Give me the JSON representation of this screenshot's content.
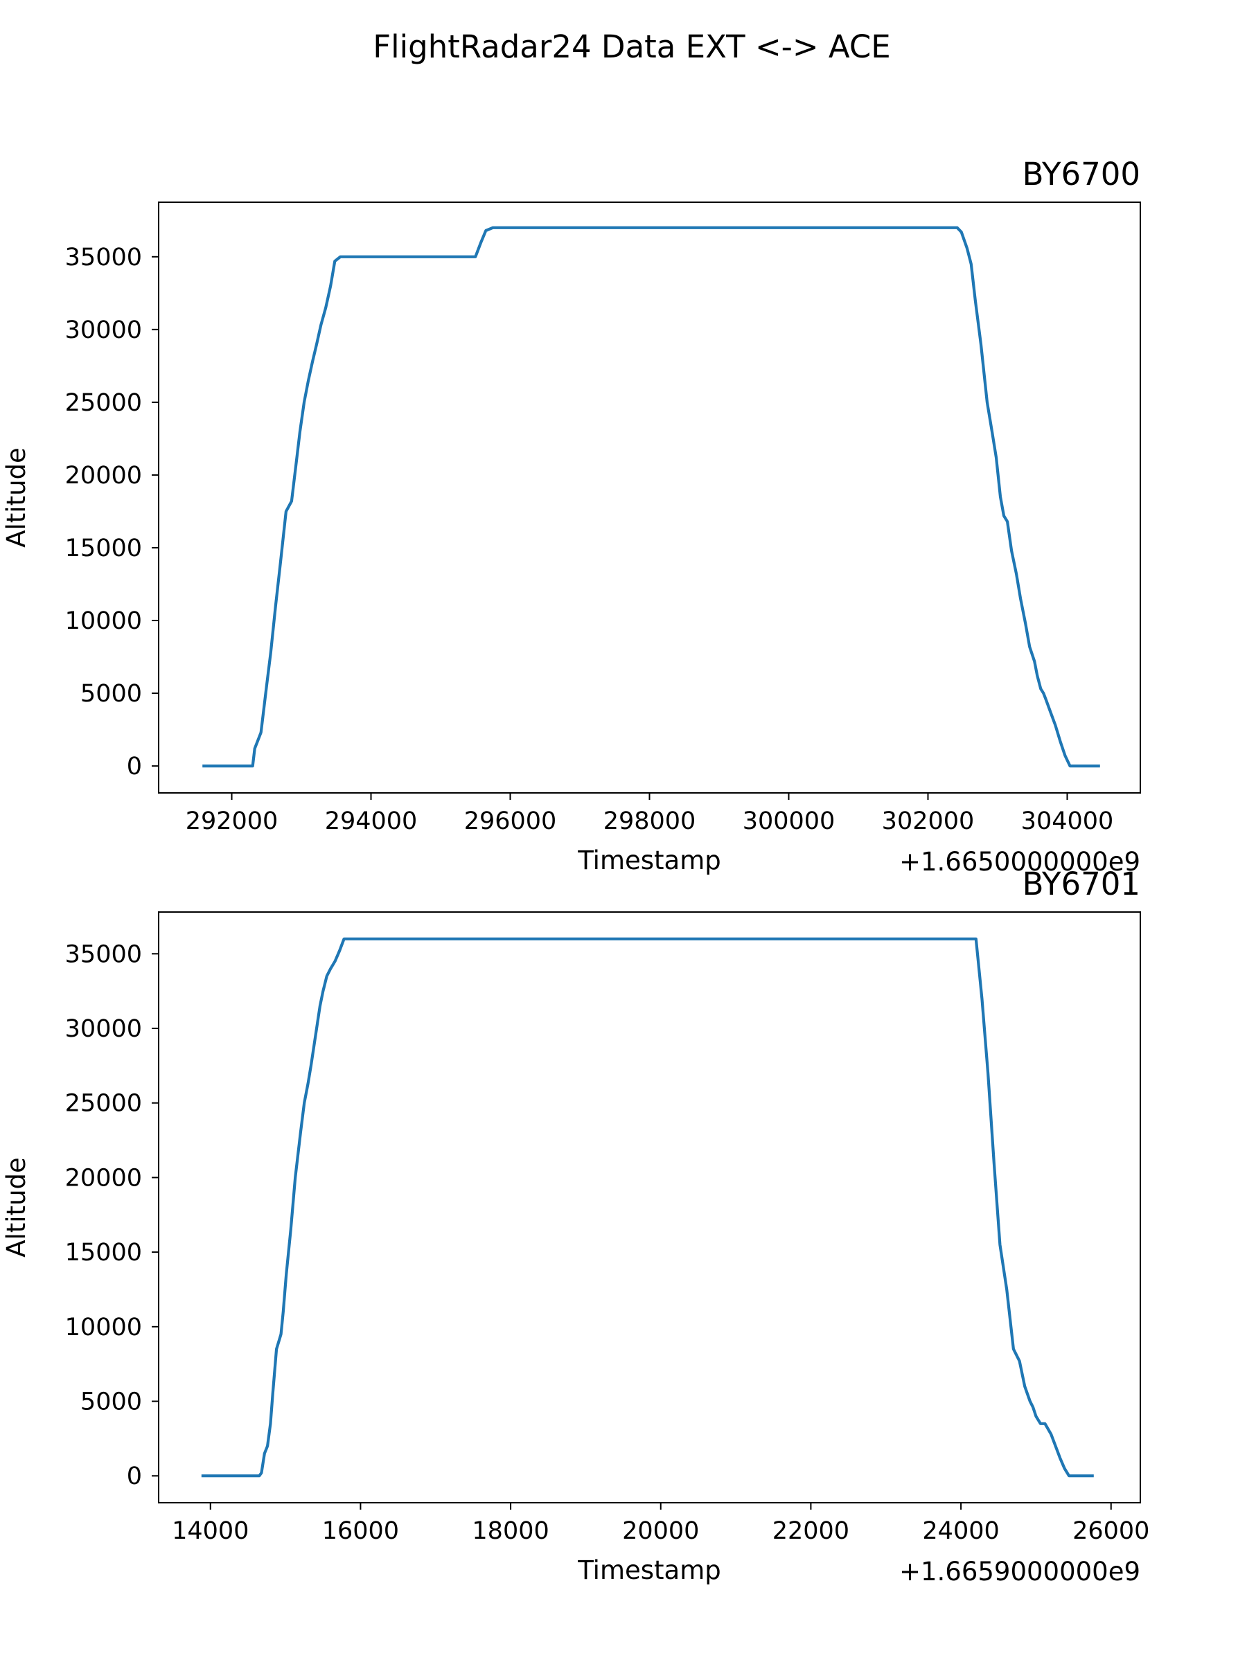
{
  "figure": {
    "suptitle": "FlightRadar24 Data EXT <-> ACE"
  },
  "style": {
    "line_color": "#1f77b4",
    "axis_color": "#000000",
    "background": "#ffffff"
  },
  "chart_data": [
    {
      "type": "line",
      "title": "BY6700",
      "title_placement": "right",
      "xlabel": "Timestamp",
      "ylabel": "Altitude",
      "x_offset_label": "+1.6650000000e9",
      "xlim": [
        290950,
        305050
      ],
      "ylim": [
        -1850,
        38750
      ],
      "xticks": [
        292000,
        294000,
        296000,
        298000,
        300000,
        302000,
        304000
      ],
      "xtick_labels": [
        "292000",
        "294000",
        "296000",
        "298000",
        "300000",
        "302000",
        "304000"
      ],
      "yticks": [
        0,
        5000,
        10000,
        15000,
        20000,
        25000,
        30000,
        35000
      ],
      "ytick_labels": [
        "0",
        "5000",
        "10000",
        "15000",
        "20000",
        "25000",
        "30000",
        "35000"
      ],
      "grid": false,
      "legend": false,
      "series": [
        {
          "x": [
            291600,
            292300,
            292330,
            292420,
            292500,
            292560,
            292630,
            292700,
            292780,
            292860,
            292930,
            292980,
            293040,
            293100,
            293160,
            293220,
            293280,
            293350,
            293420,
            293480,
            293560,
            293900,
            295000,
            295500,
            295580,
            295650,
            295750,
            296500,
            298000,
            300000,
            302000,
            302420,
            302480,
            302560,
            302620,
            302680,
            302760,
            302850,
            302920,
            302980,
            303040,
            303090,
            303140,
            303200,
            303270,
            303330,
            303400,
            303460,
            303530,
            303570,
            303620,
            303660,
            303700,
            303760,
            303830,
            303900,
            303970,
            304040,
            304110,
            304200,
            304450
          ],
          "y": [
            0,
            0,
            1200,
            2300,
            5500,
            7800,
            11000,
            14000,
            17500,
            18200,
            21000,
            23000,
            25000,
            26500,
            27800,
            29000,
            30300,
            31500,
            33000,
            34700,
            35000,
            35000,
            35000,
            35000,
            36000,
            36800,
            37000,
            37000,
            37000,
            37000,
            37000,
            37000,
            36700,
            35600,
            34500,
            32000,
            29000,
            25000,
            23000,
            21200,
            18500,
            17200,
            16800,
            14800,
            13200,
            11500,
            9800,
            8200,
            7200,
            6200,
            5300,
            5000,
            4500,
            3700,
            2800,
            1700,
            700,
            0,
            0,
            0,
            0
          ],
          "color": "#1f77b4"
        }
      ]
    },
    {
      "type": "line",
      "title": "BY6701",
      "title_placement": "right",
      "xlabel": "Timestamp",
      "ylabel": "Altitude",
      "x_offset_label": "+1.6659000000e9",
      "xlim": [
        13310,
        26390
      ],
      "ylim": [
        -1800,
        37800
      ],
      "xticks": [
        14000,
        16000,
        18000,
        20000,
        22000,
        24000,
        26000
      ],
      "xtick_labels": [
        "14000",
        "16000",
        "18000",
        "20000",
        "22000",
        "24000",
        "26000"
      ],
      "yticks": [
        0,
        5000,
        10000,
        15000,
        20000,
        25000,
        30000,
        35000
      ],
      "ytick_labels": [
        "0",
        "5000",
        "10000",
        "15000",
        "20000",
        "25000",
        "30000",
        "35000"
      ],
      "grid": false,
      "legend": false,
      "series": [
        {
          "x": [
            13900,
            14650,
            14680,
            14720,
            14760,
            14800,
            14830,
            14880,
            14940,
            14970,
            15010,
            15070,
            15130,
            15200,
            15250,
            15300,
            15340,
            15400,
            15460,
            15500,
            15550,
            15600,
            15660,
            15720,
            15780,
            15830,
            17000,
            20000,
            24200,
            24280,
            24360,
            24440,
            24520,
            24610,
            24700,
            24780,
            24850,
            24920,
            24960,
            25000,
            25060,
            25120,
            25200,
            25260,
            25320,
            25380,
            25440,
            25500,
            25560,
            25750
          ],
          "y": [
            0,
            0,
            200,
            1500,
            2000,
            3500,
            5500,
            8500,
            9500,
            11000,
            13500,
            16500,
            20000,
            23000,
            25000,
            26300,
            27500,
            29500,
            31500,
            32500,
            33500,
            34000,
            34500,
            35200,
            36000,
            36000,
            36000,
            36000,
            36000,
            32000,
            27000,
            21000,
            15500,
            12500,
            8500,
            7700,
            6000,
            5000,
            4600,
            4000,
            3500,
            3500,
            2800,
            2000,
            1200,
            500,
            0,
            0,
            0,
            0
          ],
          "color": "#1f77b4"
        }
      ]
    }
  ]
}
